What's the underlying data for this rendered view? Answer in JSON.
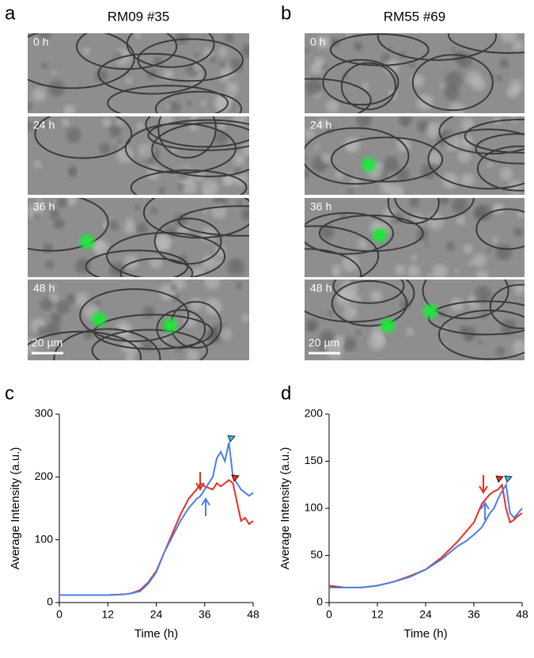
{
  "panels": [
    {
      "letter": "a",
      "title": "RM09 #35",
      "times": [
        "0 h",
        "24 h",
        "36 h",
        "48 h"
      ],
      "scale_bar": "20 µm"
    },
    {
      "letter": "b",
      "title": "RM55 #69",
      "times": [
        "0 h",
        "24 h",
        "36 h",
        "48 h"
      ],
      "scale_bar": "20 µm"
    }
  ],
  "chart_data": [
    {
      "type": "line",
      "panel": "c",
      "xlabel": "Time (h)",
      "ylabel": "Average Intensity (a.u.)",
      "x": [
        0,
        4,
        8,
        12,
        16,
        18,
        20,
        22,
        24,
        26,
        28,
        30,
        32,
        34,
        35,
        36,
        38,
        39,
        40,
        41,
        42,
        43,
        44,
        45,
        46,
        47,
        48
      ],
      "series": [
        {
          "color": "#ee2c1e",
          "values": [
            12,
            12,
            12,
            12,
            13,
            15,
            20,
            32,
            50,
            80,
            110,
            140,
            165,
            180,
            190,
            185,
            180,
            190,
            185,
            190,
            195,
            190,
            160,
            130,
            135,
            125,
            130
          ]
        },
        {
          "color": "#4a7fe6",
          "values": [
            12,
            12,
            12,
            12,
            13,
            15,
            18,
            30,
            48,
            80,
            105,
            130,
            150,
            165,
            170,
            180,
            200,
            230,
            240,
            225,
            255,
            200,
            190,
            180,
            175,
            170,
            175
          ]
        }
      ],
      "xlim": [
        0,
        48
      ],
      "xticks": [
        0,
        12,
        24,
        36,
        48
      ],
      "ylim": [
        0,
        300
      ],
      "yticks": [
        0,
        100,
        200,
        300
      ],
      "grid": false
    },
    {
      "type": "line",
      "panel": "d",
      "xlabel": "Time (h)",
      "ylabel": "Average Intensity (a.u.)",
      "x": [
        0,
        4,
        8,
        12,
        16,
        20,
        24,
        28,
        32,
        34,
        36,
        38,
        40,
        41,
        42,
        43,
        44,
        45,
        46,
        47,
        48
      ],
      "series": [
        {
          "color": "#ee2c1e",
          "values": [
            18,
            16,
            16,
            18,
            22,
            28,
            35,
            48,
            65,
            75,
            85,
            105,
            115,
            118,
            120,
            125,
            100,
            85,
            88,
            92,
            95
          ]
        },
        {
          "color": "#4a7fe6",
          "values": [
            16,
            16,
            16,
            18,
            22,
            27,
            35,
            46,
            60,
            65,
            72,
            80,
            95,
            100,
            110,
            118,
            125,
            95,
            90,
            95,
            100
          ]
        }
      ],
      "xlim": [
        0,
        48
      ],
      "xticks": [
        0,
        12,
        24,
        36,
        48
      ],
      "ylim": [
        0,
        200
      ],
      "yticks": [
        0,
        50,
        100,
        150,
        200
      ],
      "grid": false
    }
  ]
}
